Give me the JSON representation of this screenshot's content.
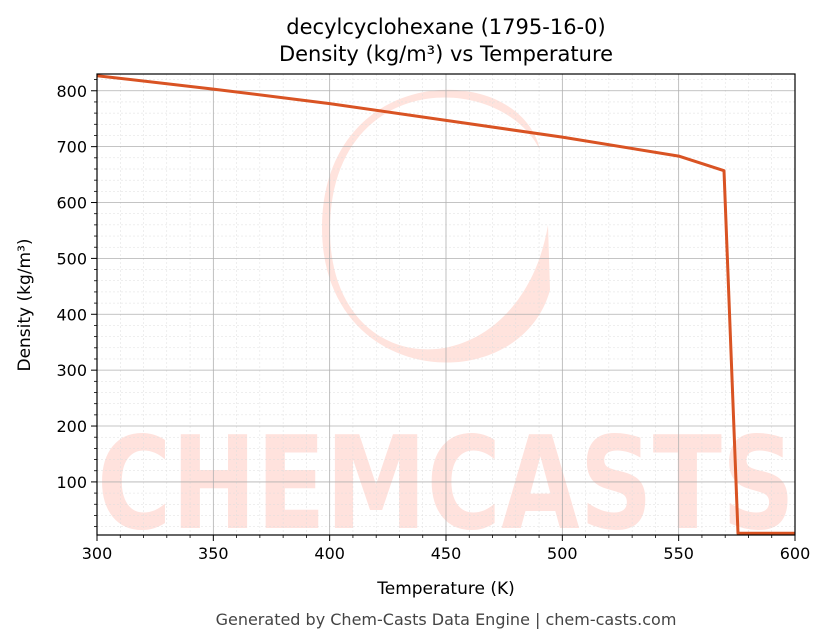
{
  "chart_data": {
    "type": "line",
    "title": "decylcyclohexane (1795-16-0)",
    "subtitle": "Density (kg/m³) vs Temperature",
    "xlabel": "Temperature (K)",
    "ylabel": "Density (kg/m³)",
    "xlim": [
      300,
      600
    ],
    "ylim": [
      5,
      830
    ],
    "x_ticks": [
      300,
      350,
      400,
      450,
      500,
      550,
      600
    ],
    "y_ticks": [
      100,
      200,
      300,
      400,
      500,
      600,
      700,
      800
    ],
    "grid": true,
    "series": [
      {
        "color": "#d95323",
        "x": [
          300,
          350,
          400,
          450,
          500,
          550,
          569.5,
          575.5,
          600
        ],
        "y": [
          827,
          803,
          777,
          747,
          717,
          683,
          657,
          8,
          8
        ]
      }
    ]
  },
  "watermark": {
    "text": "CHEMCASTS",
    "color": "#ffd9d2"
  },
  "footer": "Generated by Chem-Casts Data Engine | chem-casts.com"
}
